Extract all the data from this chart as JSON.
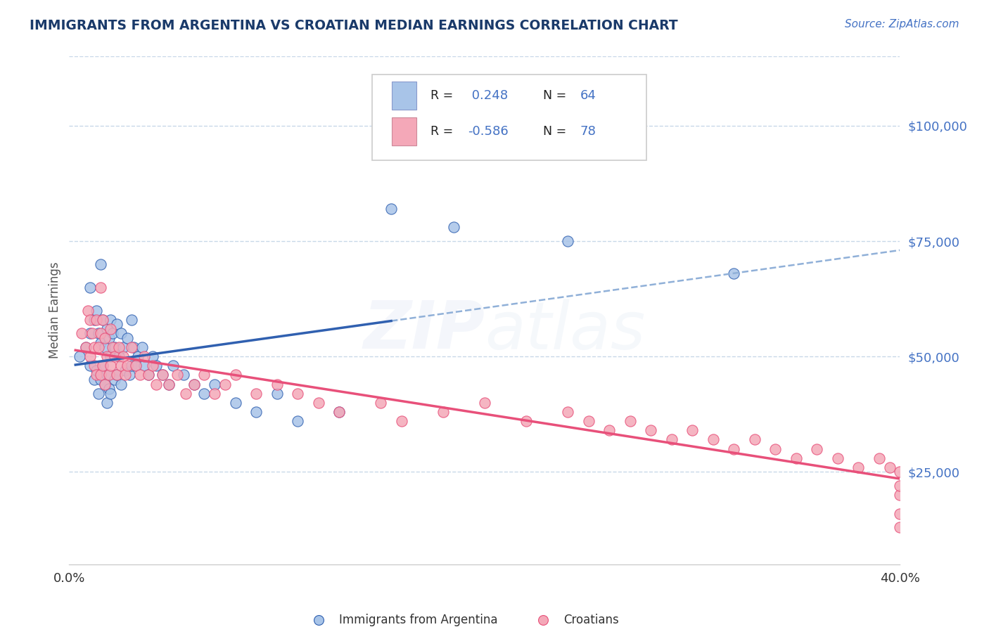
{
  "title": "IMMIGRANTS FROM ARGENTINA VS CROATIAN MEDIAN EARNINGS CORRELATION CHART",
  "source": "Source: ZipAtlas.com",
  "ylabel": "Median Earnings",
  "xlim": [
    0.0,
    0.4
  ],
  "ylim": [
    5000,
    115000
  ],
  "yticks": [
    25000,
    50000,
    75000,
    100000
  ],
  "ytick_labels": [
    "$25,000",
    "$50,000",
    "$75,000",
    "$100,000"
  ],
  "argentina_R": 0.248,
  "argentina_N": 64,
  "croatian_R": -0.586,
  "croatian_N": 78,
  "argentina_color": "#a8c4e8",
  "croatian_color": "#f4a8b8",
  "argentina_line_color": "#3060B0",
  "croatian_line_color": "#E8507A",
  "dash_line_color": "#90b0d8",
  "background_color": "#ffffff",
  "grid_color": "#c8d8e8",
  "title_color": "#1a3a6a",
  "source_color": "#4472C4",
  "label_color": "#4472C4",
  "text_dark": "#333333",
  "argentina_scatter_x": [
    0.005,
    0.008,
    0.01,
    0.01,
    0.01,
    0.012,
    0.012,
    0.013,
    0.013,
    0.014,
    0.014,
    0.015,
    0.015,
    0.015,
    0.016,
    0.016,
    0.017,
    0.017,
    0.018,
    0.018,
    0.018,
    0.019,
    0.019,
    0.02,
    0.02,
    0.02,
    0.021,
    0.022,
    0.022,
    0.023,
    0.023,
    0.024,
    0.025,
    0.025,
    0.026,
    0.027,
    0.028,
    0.029,
    0.03,
    0.03,
    0.031,
    0.032,
    0.033,
    0.035,
    0.036,
    0.038,
    0.04,
    0.042,
    0.045,
    0.048,
    0.05,
    0.055,
    0.06,
    0.065,
    0.07,
    0.08,
    0.09,
    0.1,
    0.11,
    0.13,
    0.155,
    0.185,
    0.24,
    0.32
  ],
  "argentina_scatter_y": [
    50000,
    52000,
    65000,
    48000,
    55000,
    58000,
    45000,
    60000,
    47000,
    55000,
    42000,
    70000,
    53000,
    45000,
    58000,
    48000,
    52000,
    44000,
    56000,
    46000,
    40000,
    54000,
    43000,
    58000,
    50000,
    42000,
    55000,
    52000,
    45000,
    57000,
    46000,
    50000,
    55000,
    44000,
    52000,
    47000,
    54000,
    46000,
    58000,
    48000,
    52000,
    48000,
    50000,
    52000,
    48000,
    46000,
    50000,
    48000,
    46000,
    44000,
    48000,
    46000,
    44000,
    42000,
    44000,
    40000,
    38000,
    42000,
    36000,
    38000,
    82000,
    78000,
    75000,
    68000
  ],
  "croatian_scatter_x": [
    0.006,
    0.008,
    0.009,
    0.01,
    0.01,
    0.011,
    0.012,
    0.012,
    0.013,
    0.013,
    0.014,
    0.015,
    0.015,
    0.015,
    0.016,
    0.016,
    0.017,
    0.017,
    0.018,
    0.019,
    0.02,
    0.02,
    0.021,
    0.022,
    0.023,
    0.024,
    0.025,
    0.026,
    0.027,
    0.028,
    0.03,
    0.032,
    0.034,
    0.036,
    0.038,
    0.04,
    0.042,
    0.045,
    0.048,
    0.052,
    0.056,
    0.06,
    0.065,
    0.07,
    0.075,
    0.08,
    0.09,
    0.1,
    0.11,
    0.12,
    0.13,
    0.15,
    0.16,
    0.18,
    0.2,
    0.22,
    0.24,
    0.25,
    0.26,
    0.27,
    0.28,
    0.29,
    0.3,
    0.31,
    0.32,
    0.33,
    0.34,
    0.35,
    0.36,
    0.37,
    0.38,
    0.39,
    0.395,
    0.4,
    0.4,
    0.4,
    0.4,
    0.4
  ],
  "croatian_scatter_y": [
    55000,
    52000,
    60000,
    58000,
    50000,
    55000,
    52000,
    48000,
    58000,
    46000,
    52000,
    65000,
    55000,
    46000,
    58000,
    48000,
    54000,
    44000,
    50000,
    46000,
    56000,
    48000,
    52000,
    50000,
    46000,
    52000,
    48000,
    50000,
    46000,
    48000,
    52000,
    48000,
    46000,
    50000,
    46000,
    48000,
    44000,
    46000,
    44000,
    46000,
    42000,
    44000,
    46000,
    42000,
    44000,
    46000,
    42000,
    44000,
    42000,
    40000,
    38000,
    40000,
    36000,
    38000,
    40000,
    36000,
    38000,
    36000,
    34000,
    36000,
    34000,
    32000,
    34000,
    32000,
    30000,
    32000,
    30000,
    28000,
    30000,
    28000,
    26000,
    28000,
    26000,
    13000,
    16000,
    20000,
    22000,
    25000
  ]
}
